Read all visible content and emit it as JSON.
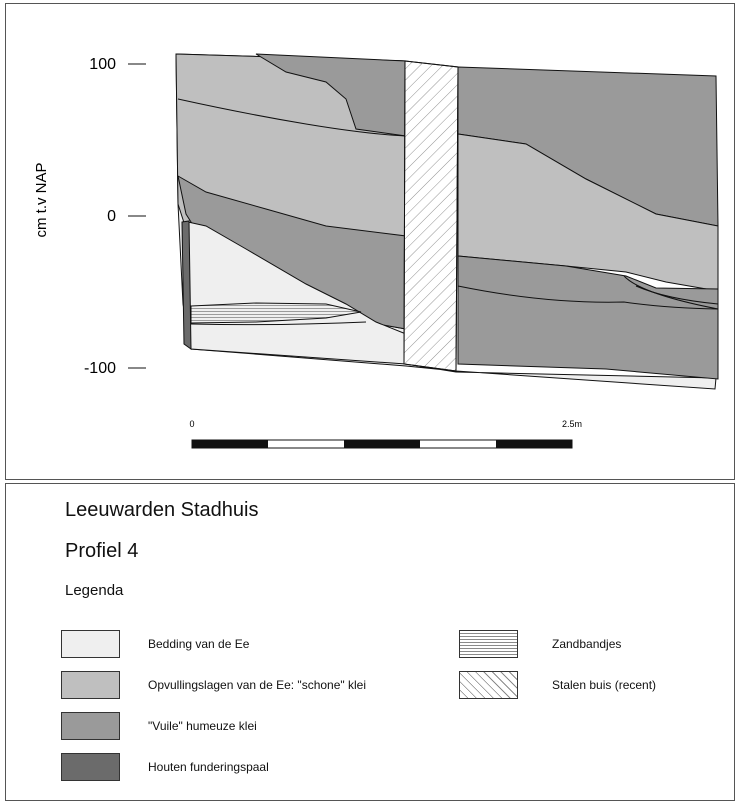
{
  "profile": {
    "y_axis_label": "cm t.v NAP",
    "y_ticks": [
      "100",
      "0",
      "-100"
    ],
    "scale_bar": {
      "start_label": "0",
      "end_label": "2.5m"
    }
  },
  "legend": {
    "title": "Leeuwarden Stadhuis",
    "subtitle": "Profiel 4",
    "heading": "Legenda",
    "items": [
      {
        "label": "Bedding van de Ee",
        "fill": "#efefef",
        "pattern": "none"
      },
      {
        "label": "Opvullingslagen van de Ee: \"schone\" klei",
        "fill": "#bfbfbf",
        "pattern": "none"
      },
      {
        "label": "\"Vuile\" humeuze klei",
        "fill": "#9a9a9a",
        "pattern": "none"
      },
      {
        "label": "Houten funderingspaal",
        "fill": "#6b6b6b",
        "pattern": "none"
      },
      {
        "label": "Zandbandjes",
        "fill": "#ffffff",
        "pattern": "horizontal-lines"
      },
      {
        "label": "Stalen buis (recent)",
        "fill": "#ffffff",
        "pattern": "diagonal-hatch"
      }
    ]
  },
  "colors": {
    "light_layer": "#efefef",
    "clean_clay": "#bfbfbf",
    "dirty_clay": "#9a9a9a",
    "pile": "#6b6b6b",
    "outline": "#111111"
  }
}
